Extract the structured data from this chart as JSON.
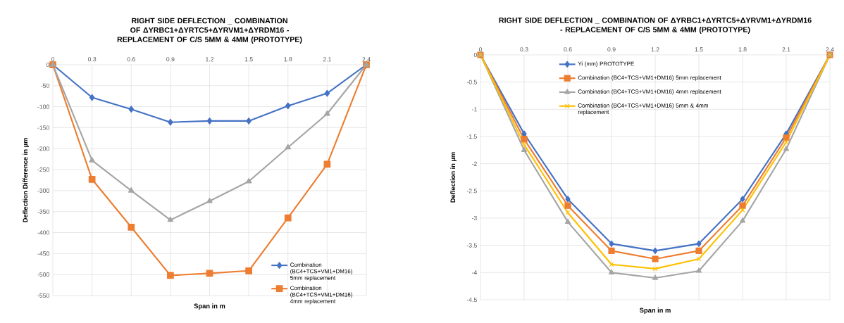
{
  "chart_data": [
    {
      "type": "line",
      "title": "RIGHT SIDE DEFLECTION _ COMBINATION OF ΔYRBC1+ΔYRTC5+ΔYRVM1+ΔYRDM16 - REPLACEMENT OF C/S 5MM & 4MM (PROTOTYPE)",
      "xlabel": "Span in m",
      "ylabel": "Deflection Difference in µm",
      "x": [
        0,
        0.3,
        0.6,
        0.9,
        1.2,
        1.5,
        1.8,
        2.1,
        2.4
      ],
      "series": [
        {
          "name": "Combination (BC4+TCS+VM1+DM16) 5mm replacement",
          "color": "#4472c4",
          "marker": "diamond",
          "values": [
            0,
            -78,
            -106,
            -137,
            -134,
            -134,
            -98,
            -68,
            0
          ]
        },
        {
          "name": "Combination (BC4+TCS+VM1+DM16) 4mm replacement",
          "color": "#ed7d31",
          "marker": "square",
          "values": [
            0,
            -273,
            -387,
            -502,
            -497,
            -491,
            -365,
            -237,
            0
          ]
        },
        {
          "color": "#a5a5a5",
          "marker": "triangle",
          "values": [
            0,
            -228,
            -300,
            -370,
            -325,
            -278,
            -197,
            -117,
            0
          ]
        }
      ],
      "xlim": [
        0,
        2.4
      ],
      "xticks": [
        0,
        0.3,
        0.6,
        0.9,
        1.2,
        1.5,
        1.8,
        2.1,
        2.4
      ],
      "ylim": [
        -550,
        0
      ],
      "yticks": [
        -550,
        -500,
        -450,
        -400,
        -350,
        -300,
        -250,
        -200,
        -150,
        -100,
        -50,
        0
      ],
      "grid": true,
      "legend": "bottom right"
    },
    {
      "type": "line",
      "title": "RIGHT SIDE DEFLECTION _ COMBINATION OF ΔYRBC1+ΔYRTC5+ΔYRVM1+ΔYRDM16 - REPLACEMENT OF C/S 5MM & 4MM (PROTOTYPE)",
      "xlabel": "Span in m",
      "ylabel": "Deflection in µm",
      "x": [
        0,
        0.3,
        0.6,
        0.9,
        1.2,
        1.5,
        1.8,
        2.1,
        2.4
      ],
      "series": [
        {
          "name": "Yi (mm) PROTOTYPE",
          "color": "#4472c4",
          "marker": "diamond",
          "values": [
            0,
            -1.45,
            -2.65,
            -3.47,
            -3.6,
            -3.47,
            -2.65,
            -1.45,
            0
          ]
        },
        {
          "name": "Combination (BC4+TCS+VM1+DM16) 5mm replacement",
          "color": "#ed7d31",
          "marker": "square",
          "values": [
            0,
            -1.55,
            -2.77,
            -3.6,
            -3.75,
            -3.6,
            -2.77,
            -1.52,
            0
          ]
        },
        {
          "name": "Combination (BC4+TCS+VM1+DM16) 4mm replacement",
          "color": "#a5a5a5",
          "marker": "triangle",
          "values": [
            0,
            -1.75,
            -3.07,
            -4.0,
            -4.1,
            -3.97,
            -3.05,
            -1.73,
            0
          ]
        },
        {
          "name": "Combination (BC4+TCS+VM1+DM16) 5mm & 4mm replacement",
          "color": "#ffc000",
          "marker": "cross",
          "values": [
            0,
            -1.65,
            -2.9,
            -3.85,
            -3.93,
            -3.75,
            -2.85,
            -1.6,
            0
          ]
        }
      ],
      "xlim": [
        0,
        2.4
      ],
      "xticks": [
        0,
        0.3,
        0.6,
        0.9,
        1.2,
        1.5,
        1.8,
        2.1,
        2.4
      ],
      "ylim": [
        -4.5,
        0
      ],
      "yticks": [
        -4.5,
        -4,
        -3.5,
        -3,
        -2.5,
        -2,
        -1.5,
        -1,
        -0.5,
        0
      ],
      "grid": true,
      "legend": "top"
    }
  ]
}
